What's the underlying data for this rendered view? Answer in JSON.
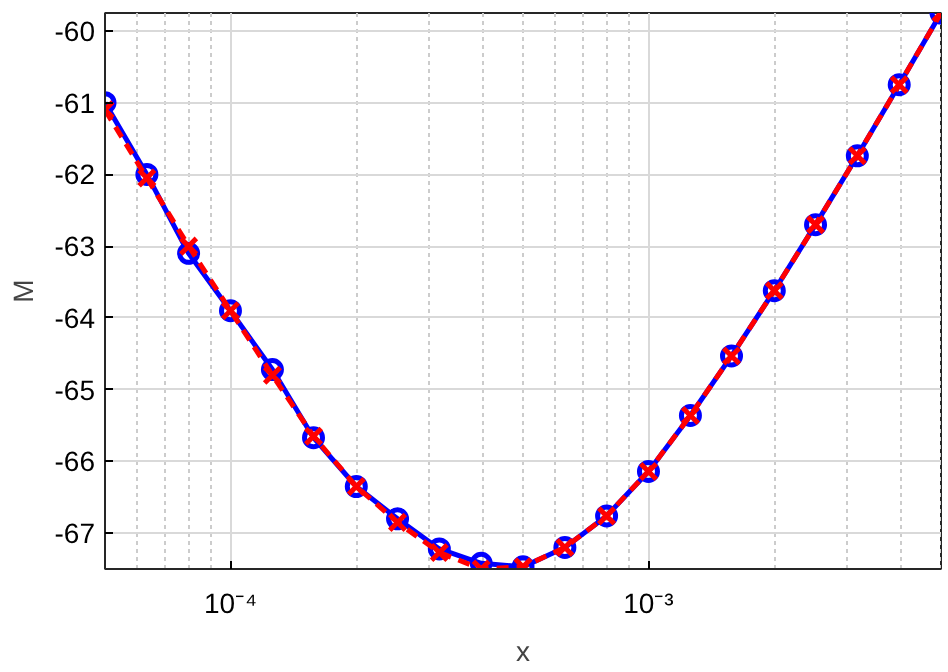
{
  "chart_data": {
    "type": "line",
    "xlabel": "x",
    "ylabel": "M",
    "log": "x",
    "x": [
      5.01e-05,
      6.31e-05,
      7.94e-05,
      0.0001,
      0.000126,
      0.000158,
      0.0002,
      0.000251,
      0.000316,
      0.000398,
      0.000501,
      0.000631,
      0.000794,
      0.001,
      0.00126,
      0.00158,
      0.002,
      0.00251,
      0.00316,
      0.00398,
      0.00501
    ],
    "series": [
      {
        "color": "#0000ff",
        "marker": "circle",
        "line_style": "solid",
        "values": [
          -61.0,
          -62.0,
          -63.1,
          -63.9,
          -64.72,
          -65.67,
          -66.35,
          -66.8,
          -67.22,
          -67.42,
          -67.47,
          -67.2,
          -66.76,
          -66.14,
          -65.36,
          -64.53,
          -63.62,
          -62.7,
          -61.74,
          -60.75,
          -59.75
        ]
      },
      {
        "color": "#ff0000",
        "marker": "cross",
        "line_style": "dashed",
        "values": [
          -61.1,
          -62.05,
          -63.0,
          -63.9,
          -64.8,
          -65.65,
          -66.35,
          -66.85,
          -67.27,
          -67.5,
          -67.47,
          -67.2,
          -66.76,
          -66.14,
          -65.36,
          -64.53,
          -63.62,
          -62.7,
          -61.74,
          -60.75,
          -59.75
        ]
      }
    ],
    "xlim": [
      5.01e-05,
      0.00501
    ],
    "ylim": [
      -67.5,
      -59.75
    ],
    "xticks": [
      {
        "value": 0.0001,
        "label": "10⁻⁴"
      },
      {
        "value": 0.001,
        "label": "10⁻³"
      }
    ],
    "yticks": [
      -67,
      -66,
      -65,
      -64,
      -63,
      -62,
      -61,
      -60
    ],
    "grid": true
  }
}
